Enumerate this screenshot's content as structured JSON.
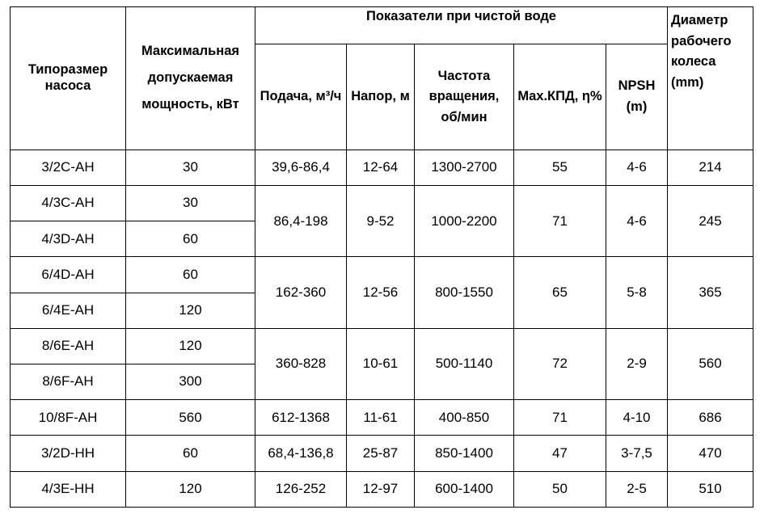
{
  "headers": {
    "pump_type": "Типоразмер насоса",
    "power": "Максимальная допускаемая мощность, кВт",
    "group": "Показатели при чистой воде",
    "flow": "Подача, м³/ч",
    "head": "Напор, м",
    "speed": "Частота вращения, об/мин",
    "efficiency": "Max.КПД, η%",
    "npsh": "NPSH (m)",
    "diameter": "Диаметр рабочего колеса (mm)"
  },
  "rows": [
    {
      "type": "3/2C-AH",
      "power": "30",
      "flow": "39,6-86,4",
      "head": "12-64",
      "speed": "1300-2700",
      "eff": "55",
      "npsh": "4-6",
      "diam": "214"
    },
    {
      "type": "4/3C-AH",
      "power": "30",
      "flow": "86,4-198",
      "head": "9-52",
      "speed": "1000-2200",
      "eff": "71",
      "npsh": "4-6",
      "diam": "245"
    },
    {
      "type": "4/3D-AH",
      "power": "60"
    },
    {
      "type": "6/4D-AH",
      "power": "60",
      "flow": "162-360",
      "head": "12-56",
      "speed": "800-1550",
      "eff": "65",
      "npsh": "5-8",
      "diam": "365"
    },
    {
      "type": "6/4E-AH",
      "power": "120"
    },
    {
      "type": "8/6E-AH",
      "power": "120",
      "flow": "360-828",
      "head": "10-61",
      "speed": "500-1140",
      "eff": "72",
      "npsh": "2-9",
      "diam": "560"
    },
    {
      "type": "8/6F-AH",
      "power": "300"
    },
    {
      "type": "10/8F-AH",
      "power": "560",
      "flow": "612-1368",
      "head": "11-61",
      "speed": "400-850",
      "eff": "71",
      "npsh": "4-10",
      "diam": "686"
    },
    {
      "type": "3/2D-HH",
      "power": "60",
      "flow": "68,4-136,8",
      "head": "25-87",
      "speed": "850-1400",
      "eff": "47",
      "npsh": "3-7,5",
      "diam": "470"
    },
    {
      "type": "4/3E-HH",
      "power": "120",
      "flow": "126-252",
      "head": "12-97",
      "speed": "600-1400",
      "eff": "50",
      "npsh": "2-5",
      "diam": "510"
    }
  ]
}
